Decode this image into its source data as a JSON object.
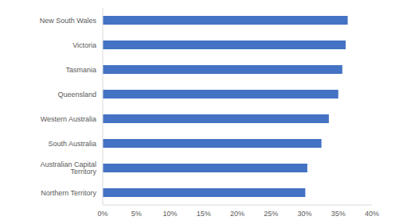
{
  "chart_data": {
    "type": "bar",
    "orientation": "horizontal",
    "categories": [
      "New South Wales",
      "Victoria",
      "Tasmania",
      "Queensland",
      "Western Australia",
      "South Australia",
      "Australian Capital Territory",
      "Northern Territory"
    ],
    "values": [
      36.4,
      36.1,
      35.6,
      35.0,
      33.6,
      32.5,
      30.4,
      30.1
    ],
    "color": "#4472c4",
    "xlim": [
      0,
      40
    ],
    "xticks": [
      {
        "value": 0,
        "label": "0%"
      },
      {
        "value": 5,
        "label": "5%"
      },
      {
        "value": 10,
        "label": "10%"
      },
      {
        "value": 15,
        "label": "15%"
      },
      {
        "value": 20,
        "label": "20%"
      },
      {
        "value": 25,
        "label": "25%"
      },
      {
        "value": 30,
        "label": "30%"
      },
      {
        "value": 35,
        "label": "35%"
      },
      {
        "value": 40,
        "label": "40%"
      }
    ],
    "grid": false
  }
}
